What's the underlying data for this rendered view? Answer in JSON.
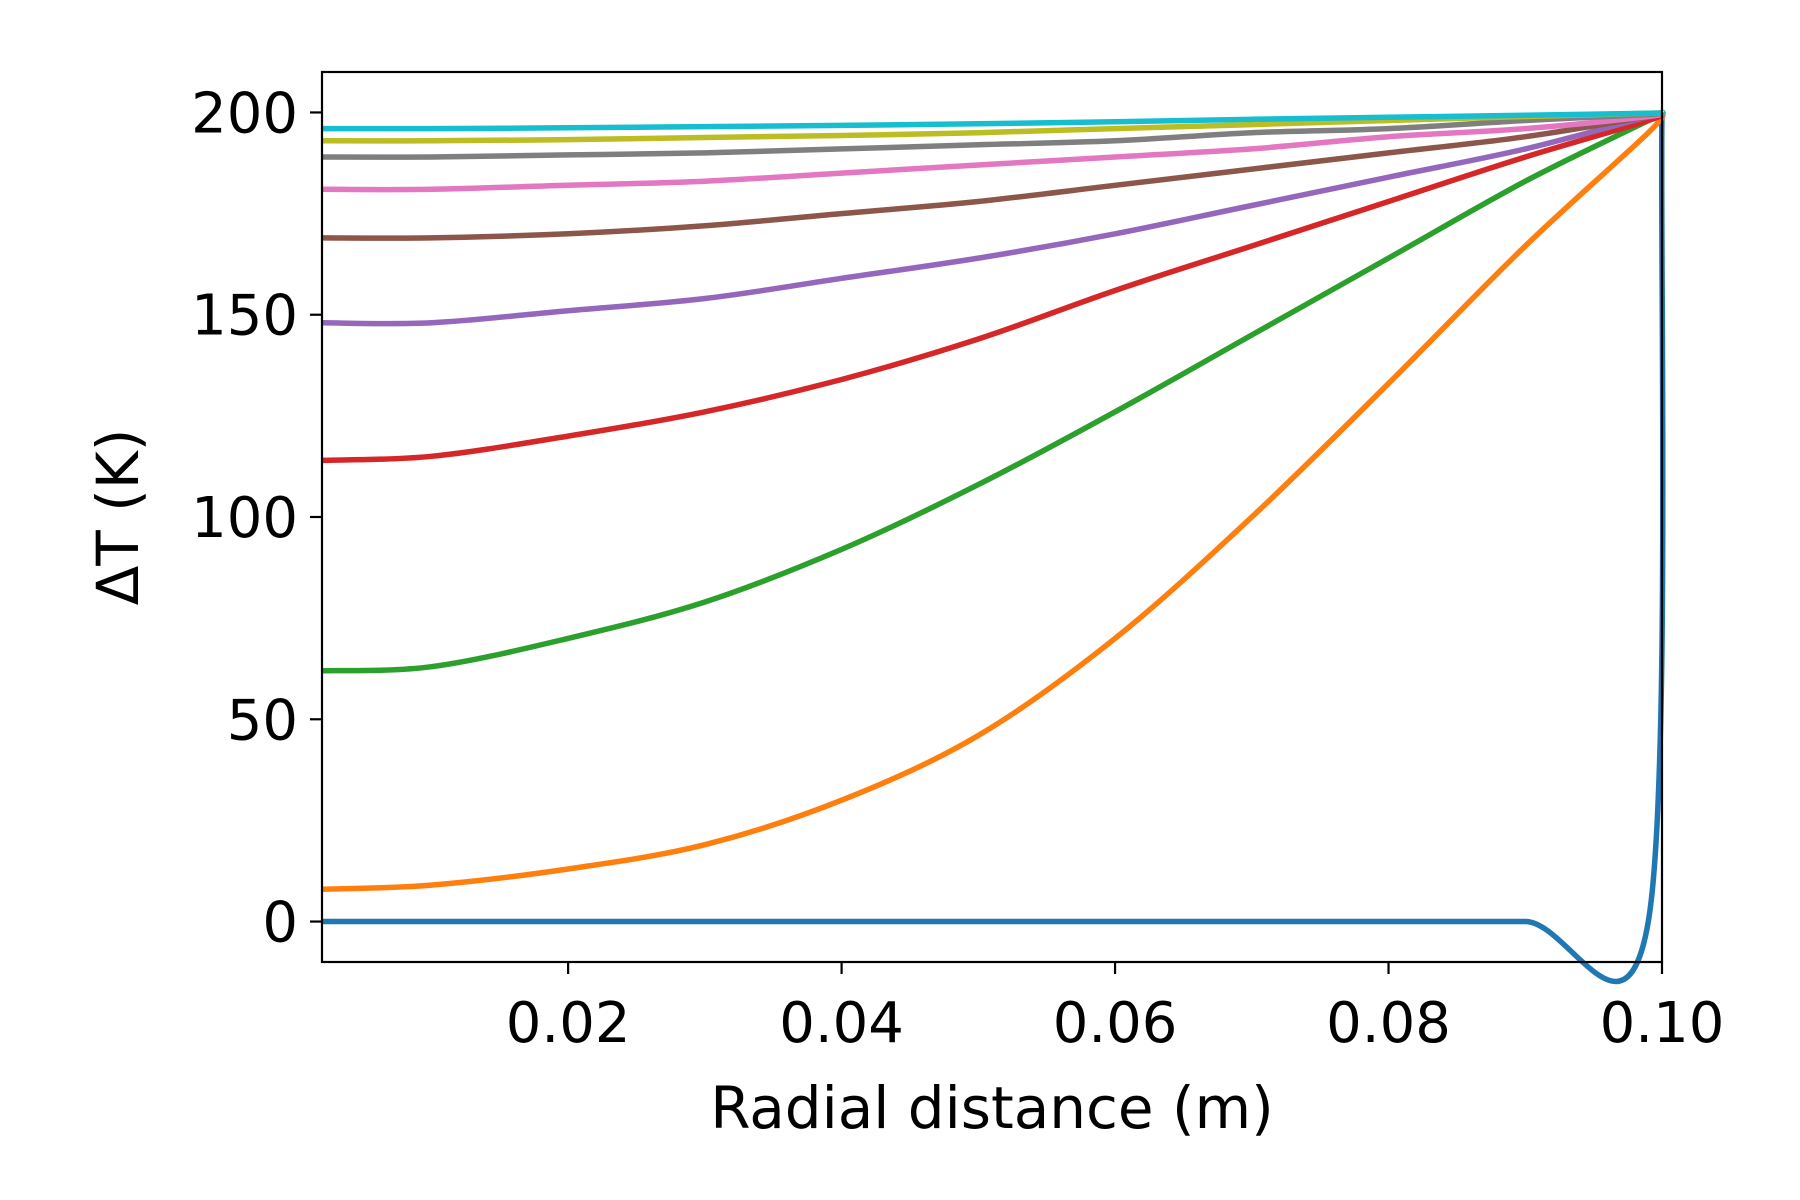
{
  "chart_data": {
    "type": "line",
    "title": "",
    "xlabel": "Radial distance (m)",
    "ylabel": "ΔT (K)",
    "xlim": [
      0.002,
      0.1
    ],
    "ylim": [
      -10,
      210
    ],
    "grid": false,
    "legend": "none",
    "xticks": [
      0.02,
      0.04,
      0.06,
      0.08,
      0.1
    ],
    "xtick_labels": [
      "0.02",
      "0.04",
      "0.06",
      "0.08",
      "0.10"
    ],
    "yticks": [
      0,
      50,
      100,
      150,
      200
    ],
    "ytick_labels": [
      "0",
      "50",
      "100",
      "150",
      "200"
    ],
    "x": [
      0.002,
      0.01,
      0.02,
      0.03,
      0.04,
      0.05,
      0.06,
      0.07,
      0.08,
      0.09,
      0.099,
      0.1
    ],
    "series": [
      {
        "color": "#1f77b4",
        "values": [
          0,
          0,
          0,
          0,
          0,
          0,
          0,
          0,
          0,
          0,
          0,
          200
        ]
      },
      {
        "color": "#ff7f0e",
        "values": [
          8,
          9,
          13,
          19,
          30,
          46,
          70,
          100,
          133,
          167,
          195,
          200
        ]
      },
      {
        "color": "#2ca02c",
        "values": [
          62,
          63,
          70,
          79,
          92,
          108,
          126,
          145,
          164,
          183,
          198,
          200
        ]
      },
      {
        "color": "#d62728",
        "values": [
          114,
          115,
          120,
          126,
          134,
          144,
          156,
          167,
          178,
          189,
          198,
          200
        ]
      },
      {
        "color": "#9467bd",
        "values": [
          148,
          148,
          151,
          154,
          159,
          164,
          170,
          177,
          184,
          191,
          199,
          200
        ]
      },
      {
        "color": "#8c564b",
        "values": [
          169,
          169,
          170,
          172,
          175,
          178,
          182,
          186,
          190,
          194,
          199,
          200
        ]
      },
      {
        "color": "#e377c2",
        "values": [
          181,
          181,
          182,
          183,
          185,
          187,
          189,
          191,
          194,
          196,
          199,
          200
        ]
      },
      {
        "color": "#7f7f7f",
        "values": [
          189,
          189,
          189.5,
          190,
          191,
          192,
          193,
          195,
          196,
          198,
          199.5,
          200
        ]
      },
      {
        "color": "#bcbd22",
        "values": [
          193,
          193,
          193.3,
          193.8,
          194.3,
          195,
          196,
          197,
          198,
          199,
          199.8,
          200
        ]
      },
      {
        "color": "#17becf",
        "values": [
          196,
          196,
          196.2,
          196.5,
          196.8,
          197.2,
          197.7,
          198.3,
          198.8,
          199.3,
          199.8,
          200
        ]
      }
    ]
  }
}
